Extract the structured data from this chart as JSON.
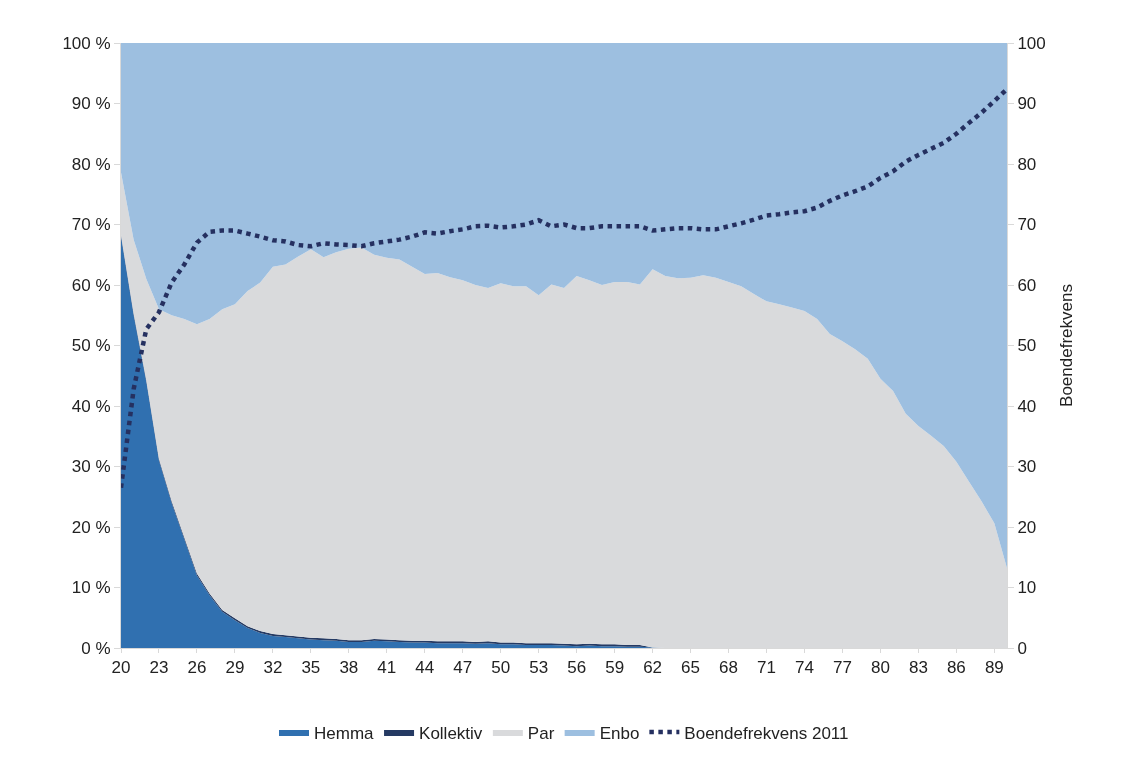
{
  "chart_data": {
    "type": "area",
    "stacked": true,
    "ylabel": null,
    "y2label": "Boendefrekvens",
    "x": [
      20,
      21,
      22,
      23,
      24,
      25,
      26,
      27,
      28,
      29,
      30,
      31,
      32,
      33,
      34,
      35,
      36,
      37,
      38,
      39,
      40,
      41,
      42,
      43,
      44,
      45,
      46,
      47,
      48,
      49,
      50,
      51,
      52,
      53,
      54,
      55,
      56,
      57,
      58,
      59,
      60,
      61,
      62,
      63,
      64,
      65,
      66,
      67,
      68,
      69,
      70,
      71,
      72,
      73,
      74,
      75,
      76,
      77,
      78,
      79,
      80,
      81,
      82,
      83,
      84,
      85,
      86,
      87,
      88,
      89,
      90
    ],
    "xlim": [
      20,
      90
    ],
    "xticks": [
      20,
      23,
      26,
      29,
      32,
      35,
      38,
      41,
      44,
      47,
      50,
      53,
      56,
      59,
      62,
      65,
      68,
      71,
      74,
      77,
      80,
      83,
      86,
      89
    ],
    "ylim": [
      0,
      100
    ],
    "yticks": [
      {
        "value": 0,
        "label": "0 %"
      },
      {
        "value": 10,
        "label": "10 %"
      },
      {
        "value": 20,
        "label": "20 %"
      },
      {
        "value": 30,
        "label": "30 %"
      },
      {
        "value": 40,
        "label": "40 %"
      },
      {
        "value": 50,
        "label": "50 %"
      },
      {
        "value": 60,
        "label": "60 %"
      },
      {
        "value": 70,
        "label": "70 %"
      },
      {
        "value": 80,
        "label": "80 %"
      },
      {
        "value": 90,
        "label": "90 %"
      },
      {
        "value": 100,
        "label": "100 %"
      }
    ],
    "y2lim": [
      0,
      100
    ],
    "y2ticks": [
      0,
      10,
      20,
      30,
      40,
      50,
      60,
      70,
      80,
      90,
      100
    ],
    "legend": "bottom",
    "series": [
      {
        "name": "Hemma",
        "color": "#3070b0",
        "values": [
          68,
          55,
          44,
          31,
          24,
          18,
          12,
          8.7,
          6,
          4.6,
          3.3,
          2.5,
          2,
          1.8,
          1.6,
          1.4,
          1.3,
          1.2,
          1,
          1,
          1.2,
          1.1,
          1,
          0.9,
          0.9,
          0.8,
          0.8,
          0.8,
          0.7,
          0.8,
          0.6,
          0.6,
          0.5,
          0.5,
          0.5,
          0.4,
          0.3,
          0.4,
          0.3,
          0.3,
          0.2,
          0.2,
          0.1,
          0,
          0,
          0,
          0,
          0,
          0,
          0,
          0,
          0,
          0,
          0,
          0,
          0,
          0,
          0,
          0,
          0,
          0,
          0,
          0,
          0,
          0,
          0,
          0,
          0,
          0,
          0,
          0
        ]
      },
      {
        "name": "Kollektiv",
        "color": "#253a63",
        "values": [
          0.3,
          0.3,
          0.3,
          0.3,
          0.3,
          0.3,
          0.3,
          0.3,
          0.3,
          0.3,
          0.3,
          0.3,
          0.3,
          0.3,
          0.3,
          0.3,
          0.3,
          0.3,
          0.3,
          0.3,
          0.3,
          0.3,
          0.3,
          0.3,
          0.3,
          0.3,
          0.3,
          0.3,
          0.3,
          0.3,
          0.3,
          0.3,
          0.3,
          0.3,
          0.3,
          0.3,
          0.3,
          0.3,
          0.3,
          0.3,
          0.3,
          0.3,
          0,
          0,
          0,
          0,
          0,
          0,
          0,
          0,
          0,
          0,
          0,
          0,
          0,
          0,
          0,
          0,
          0,
          0,
          0,
          0,
          0,
          0,
          0,
          0,
          0,
          0,
          0,
          0,
          0
        ]
      },
      {
        "name": "Par",
        "color": "#d9dadc",
        "values": [
          10.3,
          12.2,
          16.7,
          24.7,
          30.7,
          36.1,
          41.2,
          45.4,
          49.7,
          51.9,
          55.4,
          57.6,
          60.7,
          61.3,
          62.8,
          64.2,
          63,
          63.9,
          64.7,
          64.9,
          63.5,
          63.1,
          62.9,
          61.8,
          60.6,
          60.9,
          60.2,
          59.7,
          59,
          58.4,
          59.4,
          58.9,
          59,
          57.5,
          59.3,
          58.8,
          60.9,
          60.1,
          59.4,
          59.9,
          60,
          59.6,
          62.5,
          61.5,
          61.1,
          61.2,
          61.6,
          61.2,
          60.5,
          59.8,
          58.5,
          57.3,
          56.8,
          56.3,
          55.7,
          54.4,
          51.9,
          50.7,
          49.4,
          47.8,
          44.5,
          42.5,
          38.7,
          36.7,
          35.1,
          33.4,
          30.8,
          27.5,
          24.2,
          20.6,
          13.2
        ]
      },
      {
        "name": "Enbo",
        "color": "#9dbfe0",
        "values": [
          21.4,
          32.5,
          39,
          44,
          45,
          45.6,
          46.5,
          45.6,
          44,
          43.2,
          41,
          39.6,
          37,
          36.6,
          35.3,
          34.1,
          35.4,
          34.6,
          34,
          33.8,
          35,
          35.5,
          35.8,
          37,
          38.2,
          38,
          38.7,
          39.2,
          40,
          40.5,
          39.7,
          40.2,
          40.2,
          41.7,
          39.9,
          40.5,
          38.5,
          39.2,
          40,
          39.5,
          39.5,
          39.9,
          37.4,
          38.5,
          38.9,
          38.8,
          38.4,
          38.8,
          39.5,
          40.2,
          41.5,
          42.7,
          43.2,
          43.7,
          44.3,
          45.6,
          48.1,
          49.3,
          50.6,
          52.2,
          55.5,
          57.5,
          61.3,
          63.3,
          64.9,
          66.6,
          69.2,
          72.5,
          75.8,
          79.4,
          86.8
        ]
      },
      {
        "name": "Boendefrekvens 2011",
        "type": "line",
        "axis": "y2",
        "line_style": "dotted",
        "marker": "none",
        "color": "#253060",
        "values": [
          26.5,
          42.8,
          52.7,
          55.5,
          60.4,
          63.4,
          67,
          68.8,
          69,
          69,
          68.5,
          68,
          67.4,
          67.2,
          66.6,
          66.4,
          66.9,
          66.7,
          66.6,
          66.4,
          66.9,
          67.2,
          67.5,
          68,
          68.7,
          68.5,
          68.9,
          69.2,
          69.7,
          69.8,
          69.5,
          69.7,
          70,
          70.7,
          69.7,
          70,
          69.4,
          69.4,
          69.7,
          69.7,
          69.7,
          69.7,
          69,
          69.2,
          69.4,
          69.4,
          69.2,
          69.2,
          69.7,
          70.2,
          70.8,
          71.5,
          71.7,
          72,
          72.2,
          72.8,
          73.9,
          74.8,
          75.5,
          76.3,
          77.7,
          78.8,
          80.4,
          81.5,
          82.5,
          83.5,
          85,
          86.8,
          88.5,
          90.4,
          92.4
        ]
      }
    ]
  }
}
